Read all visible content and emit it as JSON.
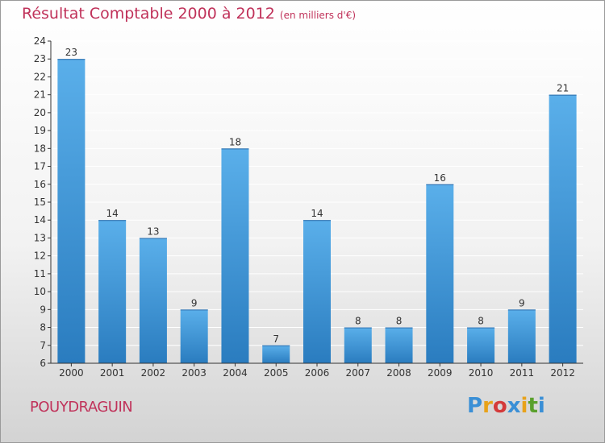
{
  "colors": {
    "title": "#c0325a",
    "bar_top": "#5aafea",
    "bar_bottom": "#2a7cbf",
    "axis": "#333333",
    "grid": "#ffffff",
    "logo": [
      "#3a8fd6",
      "#e8a21a",
      "#d43a3a",
      "#3a8fd6",
      "#e8a21a",
      "#5aa02c"
    ]
  },
  "header": {
    "title": "Résultat Comptable 2000 à 2012",
    "subtitle": "(en milliers d'€)"
  },
  "footer": {
    "commune": "POUYDRAGUIN",
    "brand_letters": [
      "P",
      "r",
      "o",
      "x",
      "i",
      "t",
      "i"
    ]
  },
  "chart_data": {
    "type": "bar",
    "title": "Résultat Comptable 2000 à 2012",
    "subtitle": "(en milliers d'€)",
    "xlabel": "",
    "ylabel": "",
    "categories": [
      "2000",
      "2001",
      "2002",
      "2003",
      "2004",
      "2005",
      "2006",
      "2007",
      "2008",
      "2009",
      "2010",
      "2011",
      "2012"
    ],
    "values": [
      23,
      14,
      13,
      9,
      18,
      7,
      14,
      8,
      8,
      16,
      8,
      9,
      21
    ],
    "ylim": [
      6,
      24
    ],
    "yticks": [
      6,
      7,
      8,
      9,
      10,
      11,
      12,
      13,
      14,
      15,
      16,
      17,
      18,
      19,
      20,
      21,
      22,
      23,
      24
    ],
    "ytick_labels": [
      "6",
      "7",
      "8",
      "9",
      "10",
      "11",
      "12",
      "13",
      "14",
      "15",
      "16",
      "17",
      "18",
      "19",
      "20",
      "21",
      "22",
      "23",
      "24"
    ],
    "grid": true
  }
}
